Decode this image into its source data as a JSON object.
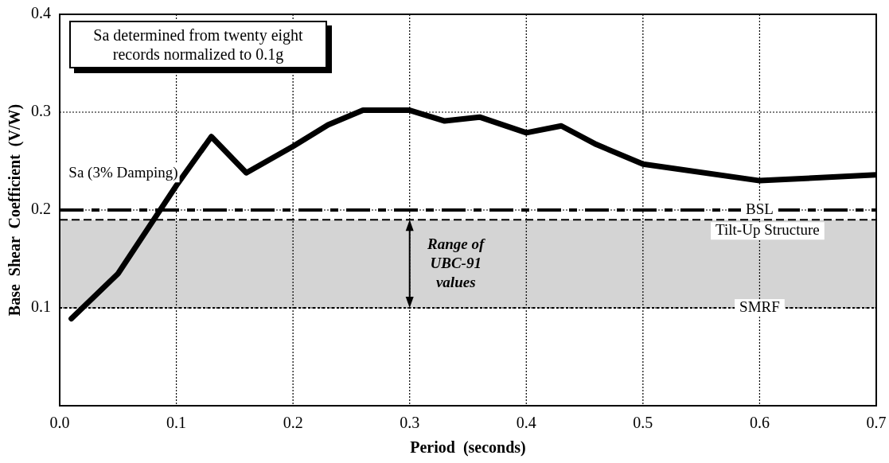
{
  "chart_data": {
    "type": "line",
    "xlabel": "Period  (seconds)",
    "ylabel": "Base  Shear  Coefficient  (V/W)",
    "series": [
      {
        "name": "Sa (3% Damping)",
        "color": "#000000",
        "x": [
          0.01,
          0.05,
          0.075,
          0.1,
          0.13,
          0.16,
          0.2,
          0.23,
          0.26,
          0.3,
          0.33,
          0.36,
          0.4,
          0.43,
          0.46,
          0.5,
          0.6,
          0.7
        ],
        "values": [
          0.089,
          0.135,
          0.18,
          0.225,
          0.275,
          0.238,
          0.265,
          0.287,
          0.302,
          0.302,
          0.291,
          0.295,
          0.279,
          0.286,
          0.267,
          0.247,
          0.23,
          0.236
        ]
      }
    ],
    "xlim": [
      0,
      0.7
    ],
    "xticks": [
      {
        "value": 0,
        "label": "0.0"
      },
      0.1,
      0.2,
      0.3,
      0.4,
      0.5,
      0.6,
      0.7
    ],
    "ylim": [
      0,
      0.4
    ],
    "yticks": [
      {
        "value": 0,
        "label": null
      },
      0.1,
      0.2,
      0.3,
      0.4
    ],
    "grid": true,
    "legend": false,
    "line_style": "solid",
    "marker": "none",
    "ref_lines": [
      {
        "axis": "y",
        "value": 0.2,
        "label": "BSL",
        "line_style": "dashed"
      },
      {
        "axis": "y",
        "value": 0.19,
        "label": "Tilt-Up Structure",
        "line_style": "dashed"
      },
      {
        "axis": "y",
        "value": 0.1,
        "label": "SMRF",
        "line_style": "dotted"
      }
    ],
    "bands": [
      {
        "axis": "y",
        "from": 0.1,
        "to": 0.19,
        "label": "Range of UBC-91 values",
        "color": "#d4d4d4"
      }
    ],
    "annotations": [
      "Sa determined from twenty eight records normalized to 0.1g"
    ]
  }
}
